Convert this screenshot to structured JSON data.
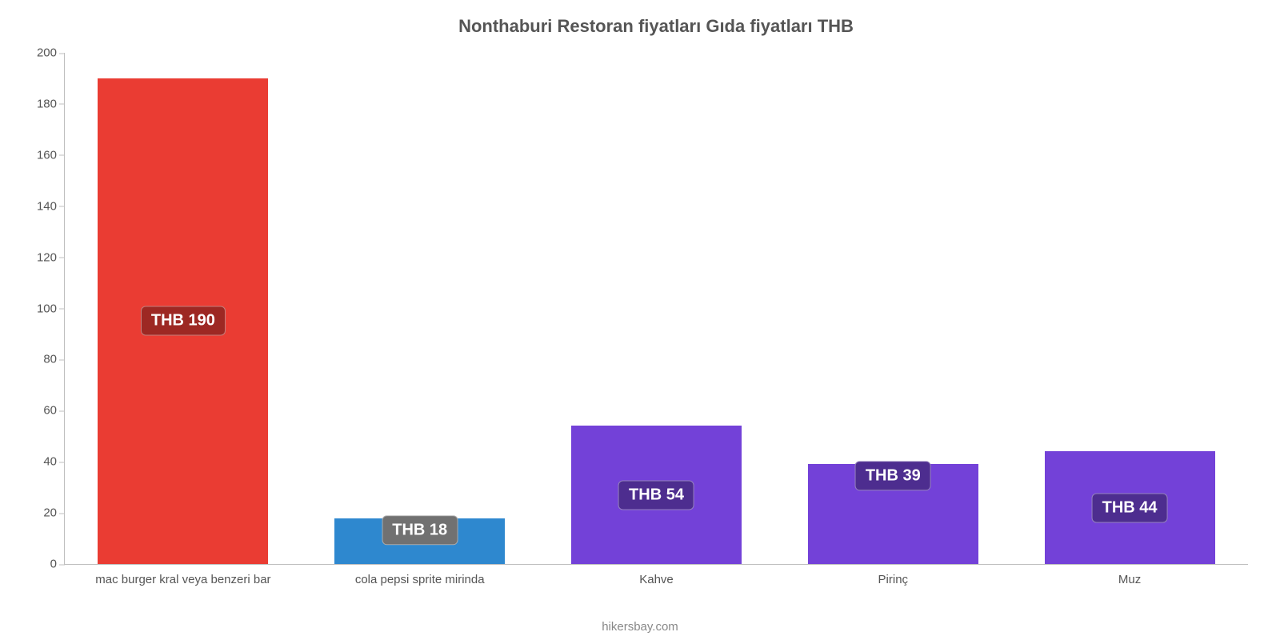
{
  "chart": {
    "type": "bar",
    "title": "Nonthaburi Restoran fiyatları Gıda fiyatları THB",
    "title_fontsize": 22,
    "title_color": "#555555",
    "source": "hikersbay.com",
    "source_fontsize": 15,
    "source_color": "#888888",
    "background_color": "#ffffff",
    "axis_color": "#bfbfbf",
    "axis_label_color": "#555555",
    "axis_label_fontsize": 15,
    "ylim": [
      0,
      200
    ],
    "yticks": [
      0,
      20,
      40,
      60,
      80,
      100,
      120,
      140,
      160,
      180,
      200
    ],
    "bar_width_pct": 72,
    "currency_prefix": "THB ",
    "value_label_fontsize": 20,
    "value_label_text_color": "#ffffff",
    "value_label_border_radius": 6,
    "categories": [
      "mac burger kral veya benzeri bar",
      "cola pepsi sprite mirinda",
      "Kahve",
      "Pirinç",
      "Muz"
    ],
    "values": [
      190,
      18,
      54,
      39,
      44
    ],
    "bar_colors": [
      "#ea3c33",
      "#2e88cf",
      "#7341d8",
      "#7341d8",
      "#7341d8"
    ],
    "value_label_bg_colors": [
      "#9d2823",
      "#717171",
      "#4d2d8f",
      "#4d2d8f",
      "#4d2d8f"
    ]
  }
}
